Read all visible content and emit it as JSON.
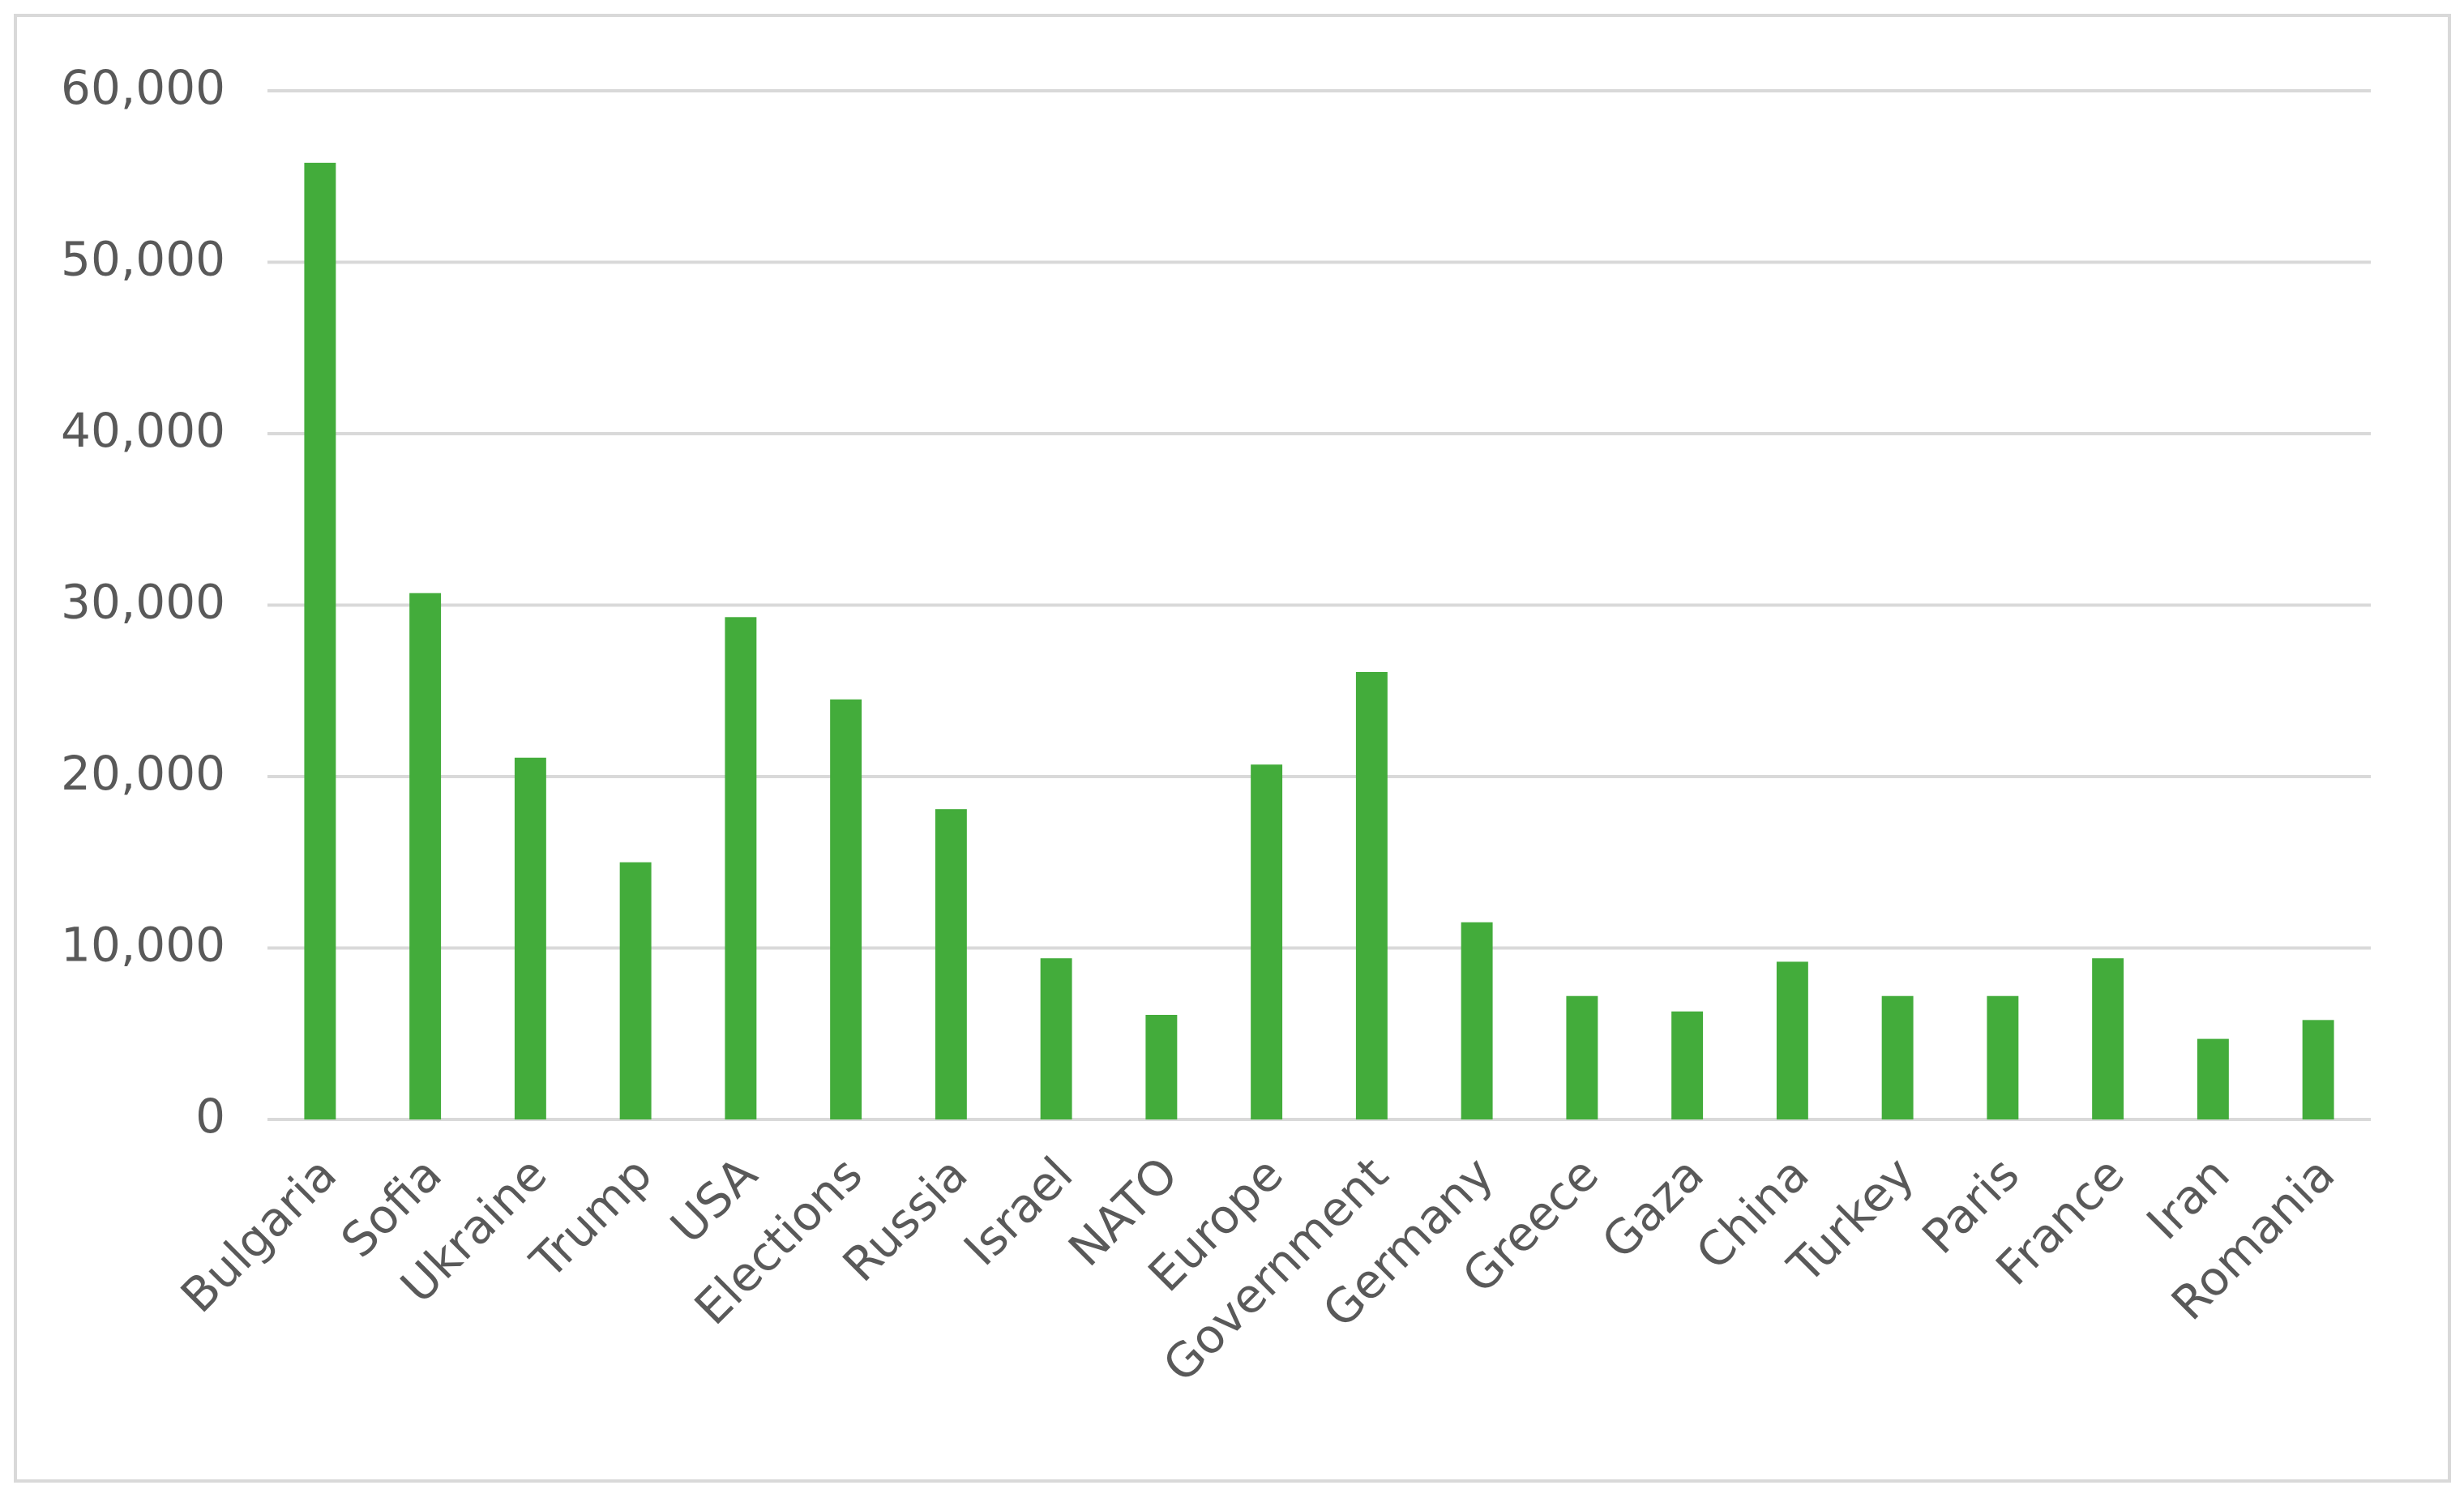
{
  "chart_data": {
    "type": "bar",
    "categories": [
      "Bulgaria",
      "Sofia",
      "Ukraine",
      "Trump",
      "USA",
      "Elections",
      "Russia",
      "Israel",
      "NATO",
      "Europe",
      "Government",
      "Germany",
      "Greece",
      "Gaza",
      "China",
      "Turkey",
      "Paris",
      "France",
      "Iran",
      "Romania"
    ],
    "values": [
      55800,
      30700,
      21100,
      15000,
      29300,
      24500,
      18100,
      9400,
      6100,
      20700,
      26100,
      11500,
      7200,
      6300,
      9200,
      7200,
      7200,
      9400,
      4700,
      5800
    ],
    "color": "#43ac3b",
    "ylim": [
      0,
      60000
    ],
    "yticks": [
      0,
      {
        "value": 10000,
        "label": "10,000"
      },
      {
        "value": 20000,
        "label": "20,000"
      },
      {
        "value": 30000,
        "label": "30,000"
      },
      {
        "value": 40000,
        "label": "40,000"
      },
      {
        "value": 50000,
        "label": "50,000"
      },
      {
        "value": 60000,
        "label": "60,000"
      }
    ],
    "grid": true
  }
}
